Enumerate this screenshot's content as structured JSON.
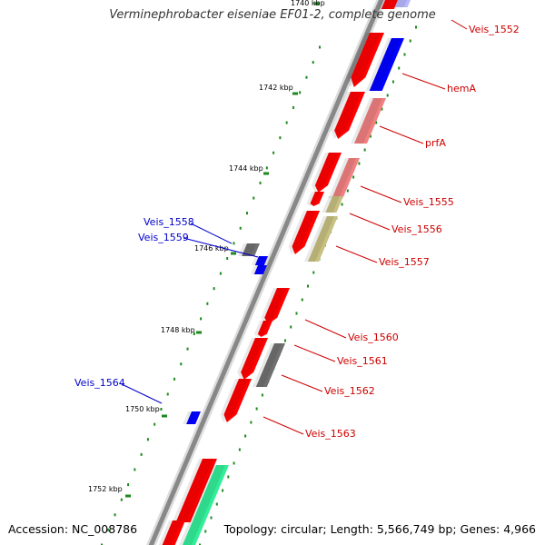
{
  "title": "Verminephrobacter eiseniae EF01-2, complete genome",
  "footer": {
    "accession": "Accession: NC_008786",
    "stats": "Topology: circular; Length: 5,566,749 bp; Genes: 4,966"
  },
  "colors": {
    "backbone": "#888888",
    "tick_dotted": "#1c8a1c",
    "label_forward": "#cc0000",
    "label_reverse": "#0000cc",
    "cds_red": "#ff0000",
    "cds_pink": "#f08080",
    "cds_olive": "#c8c080",
    "cds_gray": "#707070",
    "cds_blue": "#0000ff",
    "cds_teal": "#33ee99",
    "cds_light_blue": "#b8b8ff"
  },
  "ticks": [
    {
      "label": "1740 kbp"
    },
    {
      "label": "1742 kbp"
    },
    {
      "label": "1744 kbp"
    },
    {
      "label": "1746 kbp"
    },
    {
      "label": "1748 kbp"
    },
    {
      "label": "1750 kbp"
    },
    {
      "label": "1752 kbp"
    }
  ],
  "gene_labels": [
    {
      "text": "Veis_1552",
      "strand": "forward"
    },
    {
      "text": "hemA",
      "strand": "forward"
    },
    {
      "text": "prfA",
      "strand": "forward"
    },
    {
      "text": "Veis_1555",
      "strand": "forward"
    },
    {
      "text": "Veis_1556",
      "strand": "forward"
    },
    {
      "text": "Veis_1557",
      "strand": "forward"
    },
    {
      "text": "Veis_1558",
      "strand": "reverse"
    },
    {
      "text": "Veis_1559",
      "strand": "reverse"
    },
    {
      "text": "Veis_1560",
      "strand": "forward"
    },
    {
      "text": "Veis_1561",
      "strand": "forward"
    },
    {
      "text": "Veis_1562",
      "strand": "forward"
    },
    {
      "text": "Veis_1563",
      "strand": "forward"
    },
    {
      "text": "Veis_1564",
      "strand": "reverse"
    }
  ]
}
